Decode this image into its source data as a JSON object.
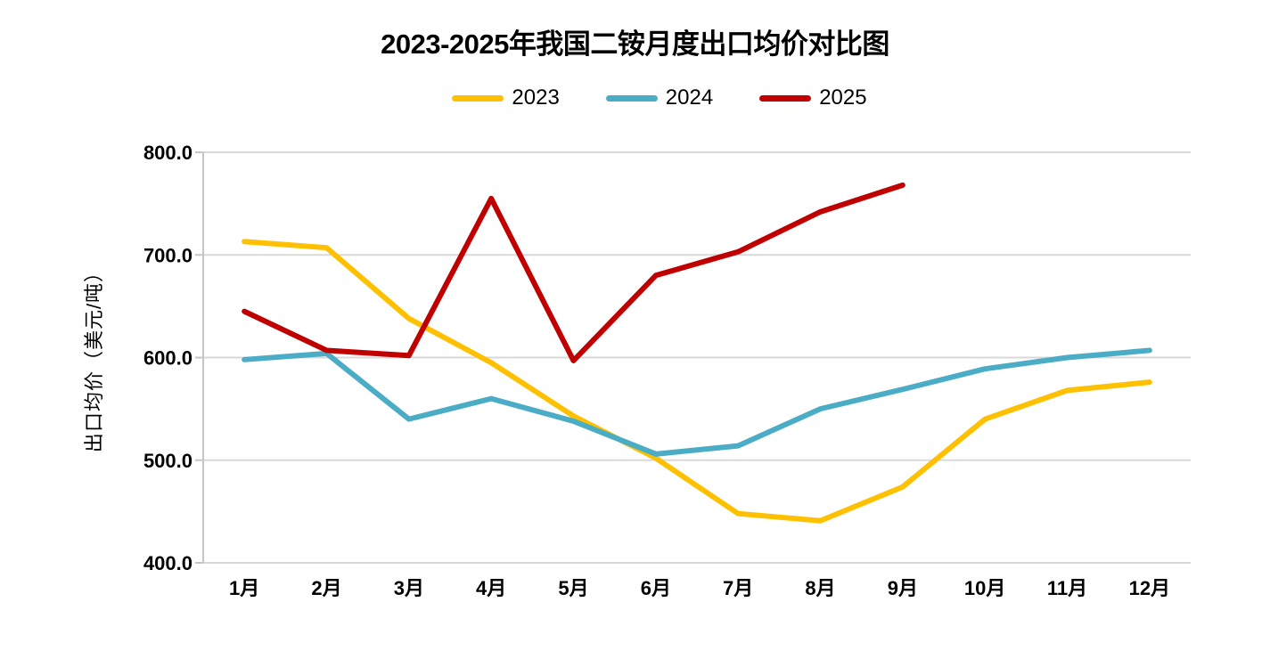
{
  "title": "2023-2025年我国二铵月度出口均价对比图",
  "chart_data": {
    "type": "line",
    "title": "2023-2025年我国二铵月度出口均价对比图",
    "categories": [
      "1月",
      "2月",
      "3月",
      "4月",
      "5月",
      "6月",
      "7月",
      "8月",
      "9月",
      "10月",
      "11月",
      "12月"
    ],
    "series": [
      {
        "name": "2023",
        "color": "#FFC000",
        "values": [
          713,
          707,
          638,
          595,
          543,
          502,
          448,
          441,
          474,
          540,
          568,
          576
        ]
      },
      {
        "name": "2024",
        "color": "#4BACC6",
        "values": [
          598,
          604,
          540,
          560,
          538,
          506,
          514,
          550,
          569,
          589,
          600,
          607
        ]
      },
      {
        "name": "2025",
        "color": "#C00000",
        "values": [
          645,
          607,
          602,
          755,
          597,
          680,
          703,
          742,
          768
        ]
      }
    ],
    "xlabel": "",
    "ylabel": "出口均价（美元/吨）",
    "ylim": [
      400,
      800
    ],
    "ytick_step": 100,
    "ytick_labels": [
      "400.0",
      "500.0",
      "600.0",
      "700.0",
      "800.0"
    ],
    "grid": true,
    "legend_position": "top"
  },
  "colors": {
    "background": "#FFFFFF",
    "gridline": "#D9D9D9",
    "axis_line": "#C6C6C6",
    "text": "#000000"
  }
}
